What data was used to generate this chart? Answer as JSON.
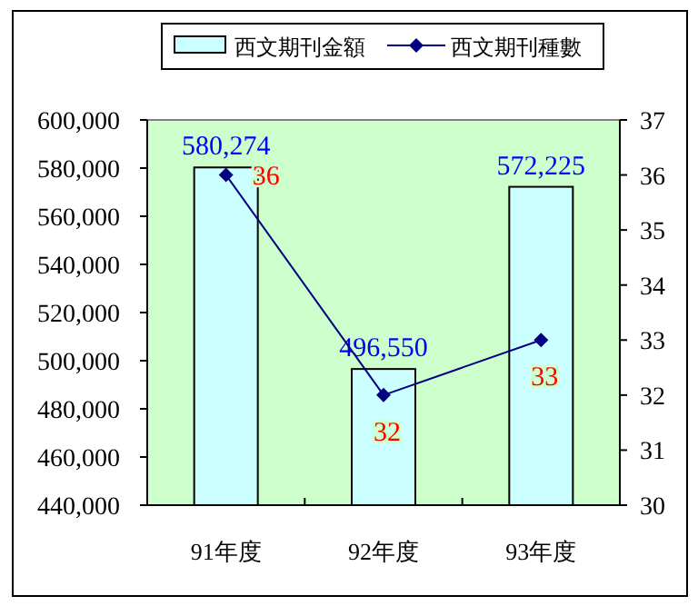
{
  "chart_data": {
    "type": "bar",
    "categories": [
      "91年度",
      "92年度",
      "93年度"
    ],
    "series": [
      {
        "name": "西文期刊金額",
        "color": "#ccffff",
        "values": [
          580274,
          496550,
          572225
        ],
        "value_labels": [
          "580,274",
          "496,550",
          "572,225"
        ]
      },
      {
        "name": "西文期刊種數",
        "type": "line",
        "axis": "y2",
        "color": "#000080",
        "marker": "diamond",
        "values": [
          36,
          32,
          33
        ],
        "value_labels": [
          "36",
          "32",
          "33"
        ]
      }
    ],
    "ylim": [
      440000,
      600000
    ],
    "yticks": [
      {
        "value": 440000,
        "label": "440,000"
      },
      {
        "value": 460000,
        "label": "460,000"
      },
      {
        "value": 480000,
        "label": "480,000"
      },
      {
        "value": 500000,
        "label": "500,000"
      },
      {
        "value": 520000,
        "label": "520,000"
      },
      {
        "value": 540000,
        "label": "540,000"
      },
      {
        "value": 560000,
        "label": "560,000"
      },
      {
        "value": 580000,
        "label": "580,000"
      },
      {
        "value": 600000,
        "label": "600,000"
      }
    ],
    "y2lim": [
      30,
      37
    ],
    "y2ticks": [
      30,
      31,
      32,
      33,
      34,
      35,
      36,
      37
    ],
    "legend": "top",
    "grid": false
  }
}
